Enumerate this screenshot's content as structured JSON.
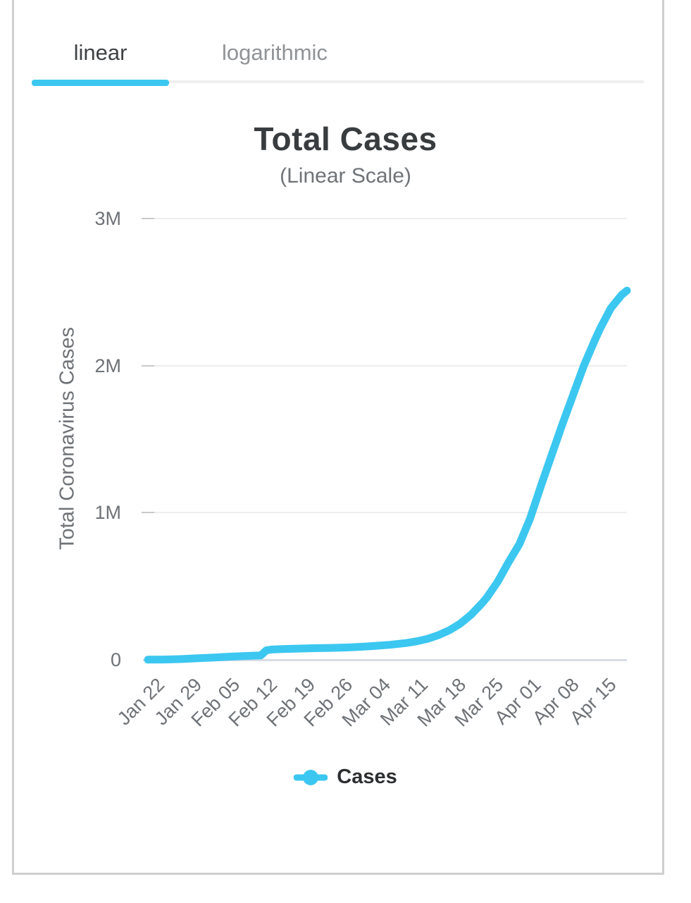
{
  "tabs": {
    "linear_label": "linear",
    "logarithmic_label": "logarithmic",
    "active_tab": "linear"
  },
  "colors": {
    "accent": "#3cc7f0",
    "card_border": "#cfcfcf",
    "gridline": "#ededed",
    "baseline": "#d8dde6",
    "tick_dash": "#c9c9c9",
    "title_text": "#393c3f",
    "muted_text": "#6e7277",
    "inactive_tab_text": "#8f9397",
    "legend_text": "#2c2e30"
  },
  "chart_data": {
    "type": "line",
    "title": "Total Cases",
    "subtitle": "(Linear Scale)",
    "ylabel": "Total Coronavirus Cases",
    "legend_label": "Cases",
    "legend_position": "bottom",
    "grid": "horizontal-only",
    "ylim": [
      0,
      3000000
    ],
    "ytick_values": [
      0,
      1000000,
      2000000,
      3000000
    ],
    "ytick_labels": [
      "0",
      "1M",
      "2M",
      "3M"
    ],
    "categories": [
      "Jan 22",
      "Jan 29",
      "Feb 05",
      "Feb 12",
      "Feb 19",
      "Feb 26",
      "Mar 04",
      "Mar 11",
      "Mar 18",
      "Mar 25",
      "Apr 01",
      "Apr 08",
      "Apr 15"
    ],
    "x_tick_interval_days": 7,
    "values_at_ticks": [
      800,
      8000,
      19000,
      30000,
      76000,
      82000,
      94000,
      120000,
      201000,
      424000,
      870000,
      1600000,
      2250000
    ],
    "series": [
      {
        "name": "Cases",
        "color": "#3cc7f0",
        "points_day_value": [
          [
            0,
            800
          ],
          [
            3,
            2000
          ],
          [
            6,
            5000
          ],
          [
            9,
            10000
          ],
          [
            12,
            15000
          ],
          [
            15,
            21000
          ],
          [
            18,
            26000
          ],
          [
            21,
            30000
          ],
          [
            22,
            64000
          ],
          [
            23,
            70000
          ],
          [
            25,
            73000
          ],
          [
            28,
            76000
          ],
          [
            31,
            79000
          ],
          [
            34,
            81000
          ],
          [
            37,
            84000
          ],
          [
            40,
            89000
          ],
          [
            42,
            94000
          ],
          [
            45,
            102000
          ],
          [
            48,
            114000
          ],
          [
            50,
            126000
          ],
          [
            52,
            143000
          ],
          [
            54,
            168000
          ],
          [
            56,
            201000
          ],
          [
            58,
            245000
          ],
          [
            60,
            305000
          ],
          [
            62,
            381000
          ],
          [
            63,
            424000
          ],
          [
            65,
            531000
          ],
          [
            67,
            663000
          ],
          [
            69,
            785000
          ],
          [
            71,
            960000
          ],
          [
            73,
            1180000
          ],
          [
            75,
            1390000
          ],
          [
            77,
            1600000
          ],
          [
            79,
            1800000
          ],
          [
            81,
            2000000
          ],
          [
            83,
            2170000
          ],
          [
            84,
            2250000
          ],
          [
            86,
            2390000
          ],
          [
            88,
            2480000
          ],
          [
            89,
            2510000
          ]
        ]
      }
    ]
  }
}
